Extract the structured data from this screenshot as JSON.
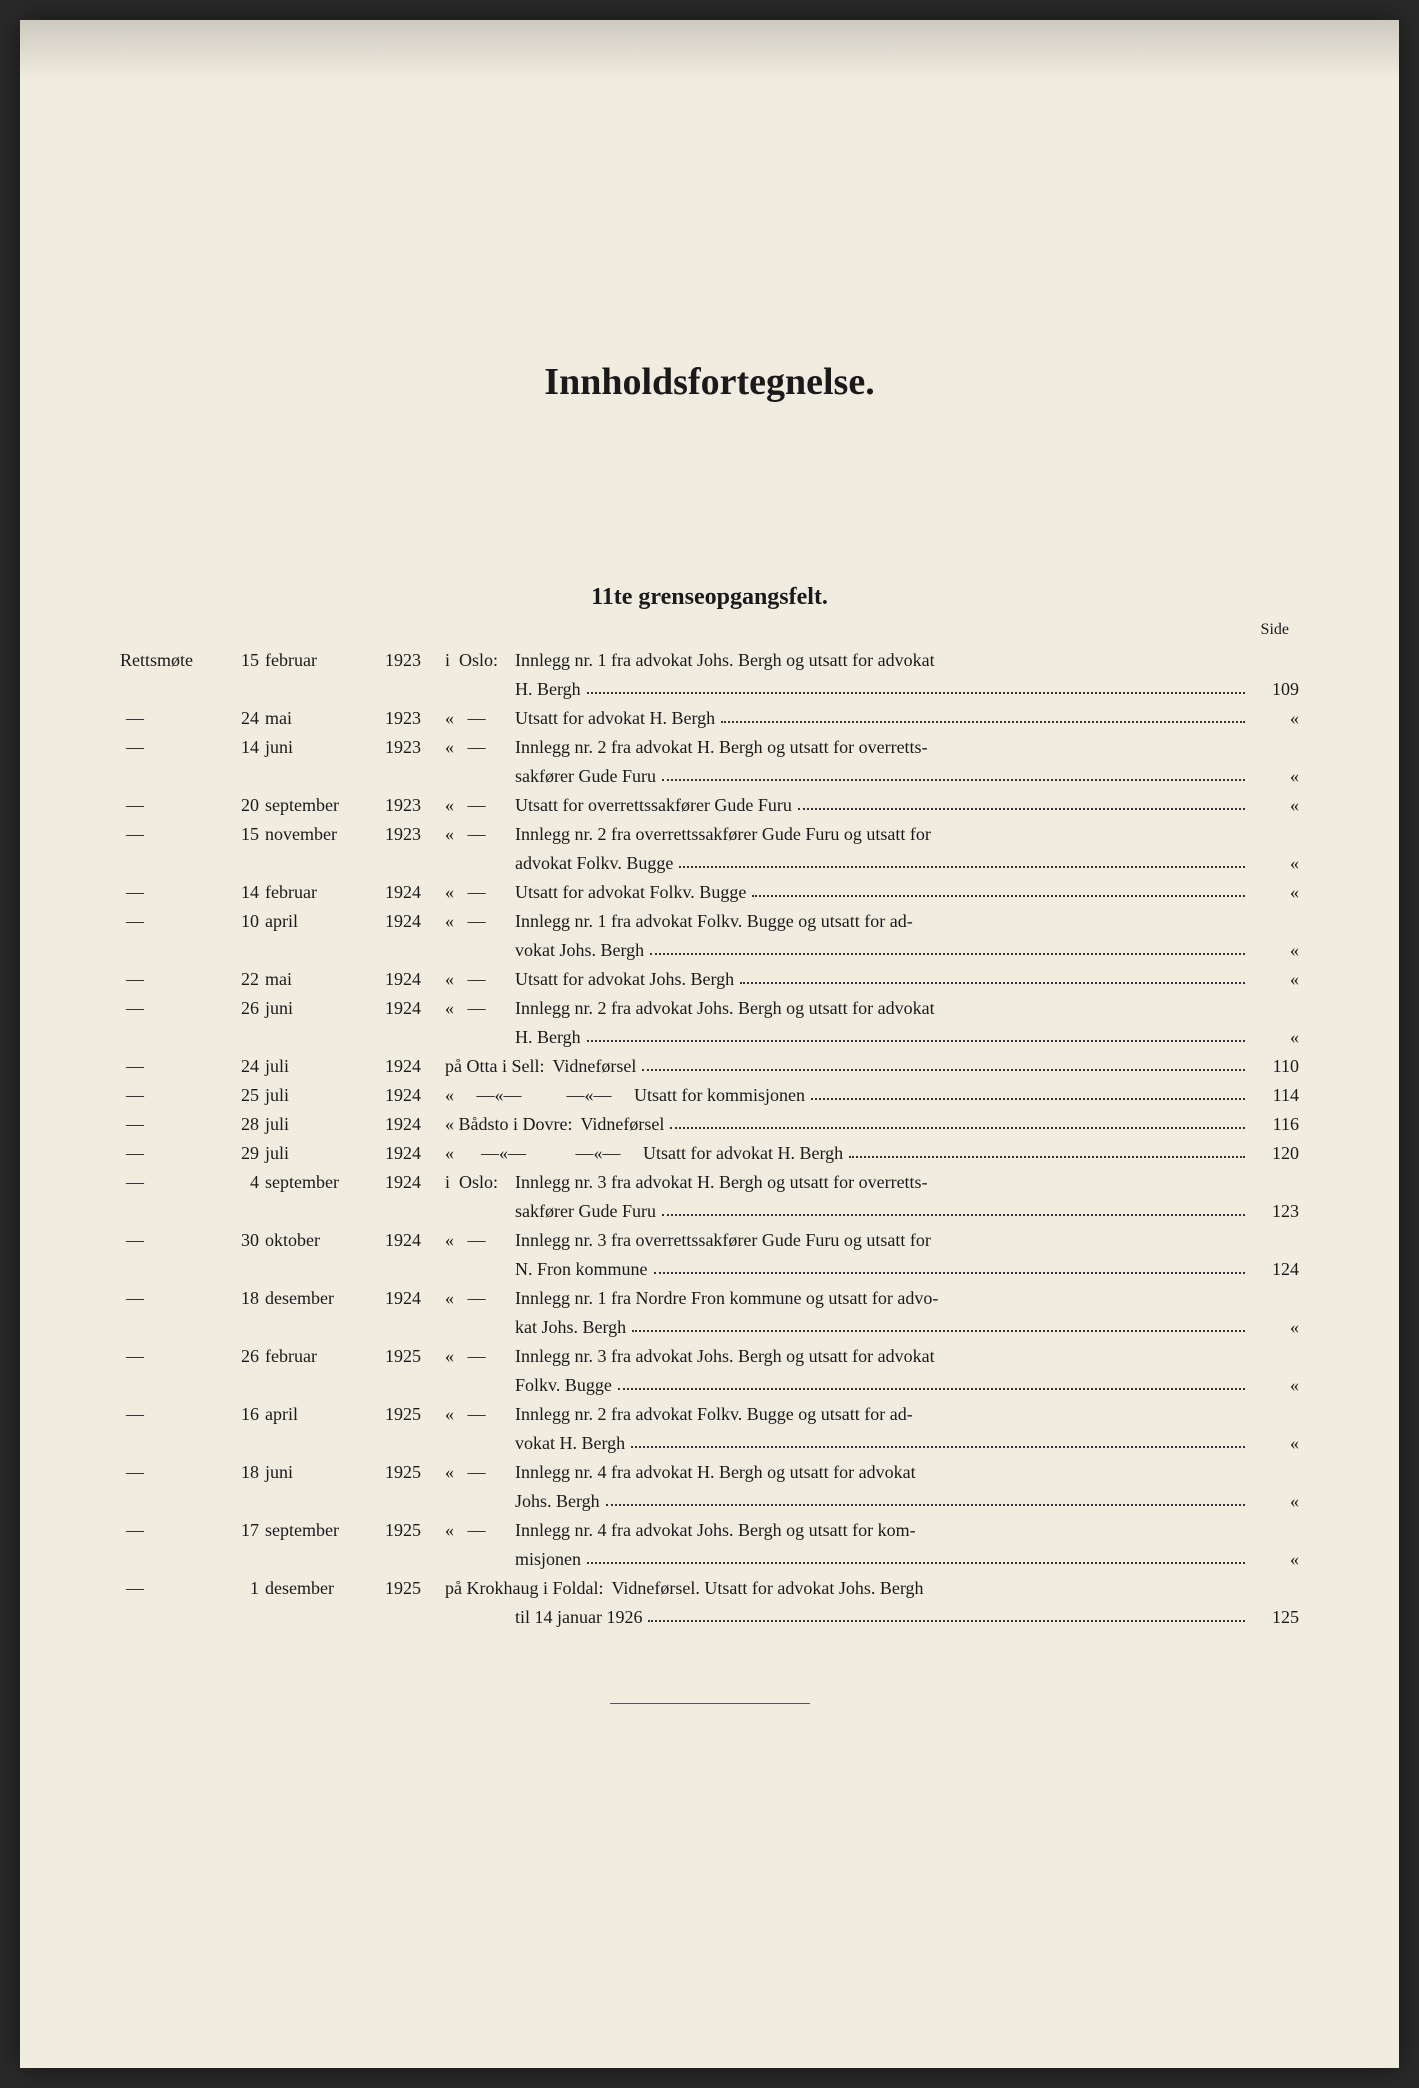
{
  "title": "Innholdsfortegnelse.",
  "subtitle": "11te grenseopgangsfelt.",
  "side_label": "Side",
  "ditto_mark": "«",
  "dash_mark": "—",
  "prefix_label": "Rettsmøte",
  "entries": [
    {
      "prefix": "Rettsmøte",
      "day": "15",
      "month": "februar",
      "year": "1923",
      "loc": "i  Oslo:",
      "desc_lines": [
        "Innlegg nr. 1 fra advokat Johs. Bergh og utsatt for advokat",
        "H. Bergh"
      ],
      "page": "109"
    },
    {
      "prefix": "—",
      "day": "24",
      "month": "mai",
      "year": "1923",
      "loc": "«   —",
      "desc_lines": [
        "Utsatt for advokat H. Bergh"
      ],
      "page": "«"
    },
    {
      "prefix": "—",
      "day": "14",
      "month": "juni",
      "year": "1923",
      "loc": "«   —",
      "desc_lines": [
        "Innlegg nr. 2 fra advokat H. Bergh og utsatt for overretts-",
        "sakfører Gude Furu"
      ],
      "page": "«"
    },
    {
      "prefix": "—",
      "day": "20",
      "month": "september",
      "year": "1923",
      "loc": "«   —",
      "desc_lines": [
        "Utsatt for overrettssakfører Gude Furu"
      ],
      "page": "«"
    },
    {
      "prefix": "—",
      "day": "15",
      "month": "november",
      "year": "1923",
      "loc": "«   —",
      "desc_lines": [
        "Innlegg nr. 2 fra overrettssakfører Gude Furu og utsatt for",
        "advokat Folkv. Bugge"
      ],
      "page": "«"
    },
    {
      "prefix": "—",
      "day": "14",
      "month": "februar",
      "year": "1924",
      "loc": "«   —",
      "desc_lines": [
        "Utsatt for advokat Folkv. Bugge"
      ],
      "page": "«"
    },
    {
      "prefix": "—",
      "day": "10",
      "month": "april",
      "year": "1924",
      "loc": "«   —",
      "desc_lines": [
        "Innlegg nr. 1 fra advokat Folkv. Bugge og utsatt for ad-",
        "vokat Johs. Bergh"
      ],
      "page": "«"
    },
    {
      "prefix": "—",
      "day": "22",
      "month": "mai",
      "year": "1924",
      "loc": "«   —",
      "desc_lines": [
        "Utsatt for advokat Johs. Bergh"
      ],
      "page": "«"
    },
    {
      "prefix": "—",
      "day": "26",
      "month": "juni",
      "year": "1924",
      "loc": "«   —",
      "desc_lines": [
        "Innlegg nr. 2 fra advokat Johs. Bergh og utsatt for advokat",
        "H. Bergh"
      ],
      "page": "«"
    },
    {
      "prefix": "—",
      "day": "24",
      "month": "juli",
      "year": "1924",
      "loc": "på Otta i Sell:",
      "desc_lines": [
        "Vidneførsel"
      ],
      "page": "110",
      "wide_loc": true
    },
    {
      "prefix": "—",
      "day": "25",
      "month": "juli",
      "year": "1924",
      "loc": "«     —«—          —«—     Utsatt for kommisjonen",
      "desc_lines": [
        ""
      ],
      "page": "114",
      "wide_loc": true,
      "full_line": true
    },
    {
      "prefix": "—",
      "day": "28",
      "month": "juli",
      "year": "1924",
      "loc": "« Bådsto i Dovre:",
      "desc_lines": [
        "Vidneførsel"
      ],
      "page": "116",
      "wide_loc": true
    },
    {
      "prefix": "—",
      "day": "29",
      "month": "juli",
      "year": "1924",
      "loc": "«      —«—           —«—     Utsatt for advokat H. Bergh",
      "desc_lines": [
        ""
      ],
      "page": "120",
      "wide_loc": true,
      "full_line": true
    },
    {
      "prefix": "—",
      "day": "4",
      "month": "september",
      "year": "1924",
      "loc": "i  Oslo:",
      "desc_lines": [
        "Innlegg nr. 3 fra advokat H. Bergh og utsatt for overretts-",
        "sakfører Gude Furu"
      ],
      "page": "123"
    },
    {
      "prefix": "—",
      "day": "30",
      "month": "oktober",
      "year": "1924",
      "loc": "«   —",
      "desc_lines": [
        "Innlegg nr. 3 fra overrettssakfører Gude Furu og utsatt for",
        "N. Fron kommune"
      ],
      "page": "124"
    },
    {
      "prefix": "—",
      "day": "18",
      "month": "desember",
      "year": "1924",
      "loc": "«   —",
      "desc_lines": [
        "Innlegg nr. 1 fra Nordre Fron kommune og utsatt for advo-",
        "kat Johs. Bergh"
      ],
      "page": "«"
    },
    {
      "prefix": "—",
      "day": "26",
      "month": "februar",
      "year": "1925",
      "loc": "«   —",
      "desc_lines": [
        "Innlegg nr. 3 fra advokat Johs. Bergh og utsatt for advokat",
        "Folkv. Bugge"
      ],
      "page": "«"
    },
    {
      "prefix": "—",
      "day": "16",
      "month": "april",
      "year": "1925",
      "loc": "«   —",
      "desc_lines": [
        "Innlegg nr. 2 fra advokat Folkv. Bugge og utsatt for ad-",
        "vokat H. Bergh"
      ],
      "page": "«"
    },
    {
      "prefix": "—",
      "day": "18",
      "month": "juni",
      "year": "1925",
      "loc": "«   —",
      "desc_lines": [
        "Innlegg nr. 4 fra advokat H. Bergh og utsatt for advokat",
        "Johs. Bergh"
      ],
      "page": "«"
    },
    {
      "prefix": "—",
      "day": "17",
      "month": "september",
      "year": "1925",
      "loc": "«   —",
      "desc_lines": [
        "Innlegg nr. 4 fra advokat Johs. Bergh og utsatt for kom-",
        "misjonen"
      ],
      "page": "«"
    },
    {
      "prefix": "—",
      "day": "1",
      "month": "desember",
      "year": "1925",
      "loc": "på Krokhaug i Foldal:",
      "desc_lines": [
        "Vidneførsel.  Utsatt for advokat Johs. Bergh",
        "til 14 januar 1926"
      ],
      "page": "125",
      "wide_loc": true,
      "cont_nodots_first": true
    }
  ]
}
